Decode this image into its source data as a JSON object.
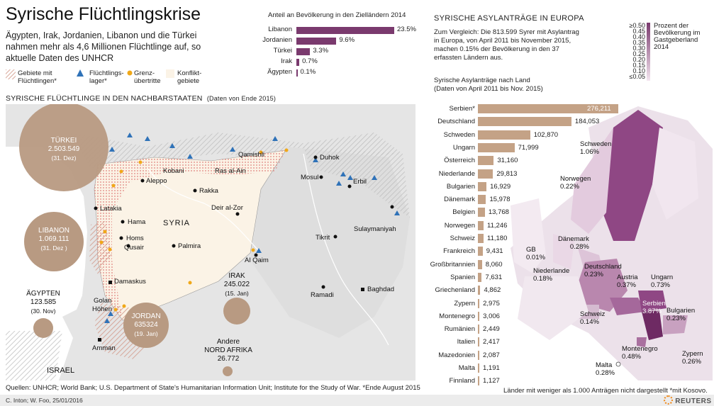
{
  "title": "Syrische Flüchtlingskrise",
  "intro": "Ägypten, Irak, Jordanien, Libanon und die Türkei nahmen mehr als 4,6 Millionen Flüchtlinge auf, so aktuelle Daten des UNHCR",
  "legend": {
    "gebiete": "Gebiete mit Flüchtlingen*",
    "lager": "Flüchtlings-lager*",
    "grenz": "Grenz-übertritte",
    "konflikt": "Konflikt-gebiete"
  },
  "neighbors_heading": "SYRISCHE FLÜCHTLINGE IN DEN NACHBARSTAATEN",
  "neighbors_heading_note": "(Daten von Ende 2015)",
  "share": {
    "title": "Anteil an Bevölkerung in den Zielländern 2014",
    "rows": [
      {
        "label": "Libanon",
        "value": 23.5,
        "text": "23.5%"
      },
      {
        "label": "Jordanien",
        "value": 9.6,
        "text": "9.6%"
      },
      {
        "label": "Türkei",
        "value": 3.3,
        "text": "3.3%"
      },
      {
        "label": "Irak",
        "value": 0.7,
        "text": "0.7%"
      },
      {
        "label": "Ägypten",
        "value": 0.1,
        "text": "0.1%"
      }
    ]
  },
  "bubbles": {
    "turkei": {
      "name": "TÜRKEI",
      "value": "2.503.549",
      "date": "(31. Dez)"
    },
    "libanon": {
      "name": "LIBANON",
      "value": "1.069.111",
      "date": "(31. Dez )"
    },
    "aegypten": {
      "name": "ÄGYPTEN",
      "value": "123.585",
      "date": "(30. Nov)"
    },
    "jordan": {
      "name": "JORDAN",
      "value": "635324",
      "date": "(19. Jan)"
    },
    "irak": {
      "name": "IRAK",
      "value": "245.022",
      "date": "(15. Jan)"
    },
    "nordafrika": {
      "name": "Andere",
      "name2": "NORD AFRIKA",
      "value": "26.772"
    }
  },
  "cities": {
    "aleppo": "Aleppo",
    "kobani": "Kobani",
    "qamishli": "Qamishli",
    "rasalain": "Ras al-Ain",
    "rakka": "Rakka",
    "latakia": "Latakia",
    "hama": "Hama",
    "syria": "SYRIA",
    "deirazzor": "Deir al-Zor",
    "homs": "Homs",
    "qusair": "Qusair",
    "palmira": "Palmira",
    "duhok": "Duhok",
    "mosul": "Mosul",
    "erbil": "Erbil",
    "sulaymaniyah": "Sulaymaniyah",
    "tikrit": "Tikrit",
    "alqaim": "Al Qaim",
    "damaskus": "Damaskus",
    "golan": "Golan",
    "hohen": "Höhen",
    "amman": "Amman",
    "ramadi": "Ramadi",
    "baghdad": "Baghdad",
    "israel": "ISRAEL"
  },
  "eu": {
    "heading": "SYRISCHE ASYLANTRÄGE IN EUROPA",
    "text": "Zum Vergleich: Die 813.599 Syrer mit Asylantrag in Europa, von April 2011 bis November 2015, machen 0.15% der Bevölkerung in den 37 erfassten Ländern aus.",
    "sub1": "Syrische Asylanträge nach Land",
    "sub2": "(Daten von April 2011 bis Nov. 2015)",
    "legend_title": "Prozent der Bevölkerung im Gastgeberland 2014",
    "legend_ticks": [
      "≥0.50",
      "0.45",
      "0.40",
      "0.35",
      "0.30",
      "0.25",
      "0.20",
      "0.15",
      "0.10",
      "≤0.05"
    ],
    "map_labels": {
      "schweden": {
        "name": "Schweden",
        "pct": "1.06%"
      },
      "norwegen": {
        "name": "Norwegen",
        "pct": "0.22%"
      },
      "daenemark": {
        "name": "Dänemark",
        "pct": "0.28%"
      },
      "gb": {
        "name": "GB",
        "pct": "0.01%"
      },
      "niederlande": {
        "name": "Niederlande",
        "pct": "0.18%"
      },
      "deutschland": {
        "name": "Deutschland",
        "pct": "0.23%"
      },
      "austria": {
        "name": "Austria",
        "pct": "0.37%"
      },
      "ungarn": {
        "name": "Ungarn",
        "pct": "0.73%"
      },
      "serbien": {
        "name": "Serbien",
        "pct": "3.87%"
      },
      "bulgarien": {
        "name": "Bulgarien",
        "pct": "0.23%"
      },
      "schweiz": {
        "name": "Schweiz",
        "pct": "0.14%"
      },
      "montenegro": {
        "name": "Montenegro",
        "pct": "0.48%"
      },
      "malta": {
        "name": "Malta",
        "pct": "0.28%"
      },
      "zypern": {
        "name": "Zypern",
        "pct": "0.26%"
      }
    }
  },
  "chart_data": {
    "type": "bar",
    "orientation": "horizontal",
    "categories": [
      "Serbien*",
      "Deutschland",
      "Schweden",
      "Ungarn",
      "Österreich",
      "Niederlande",
      "Bulgarien",
      "Dänemark",
      "Belgien",
      "Norwegen",
      "Schweiz",
      "Frankreich",
      "Großbritannien",
      "Spanien",
      "Griechenland",
      "Zypern",
      "Montenegro",
      "Rumänien",
      "Italien",
      "Mazedonien",
      "Malta",
      "Finnland"
    ],
    "values": [
      276211,
      184053,
      102870,
      71999,
      31160,
      29813,
      16929,
      15978,
      13768,
      11246,
      11180,
      9431,
      8060,
      7631,
      4862,
      2975,
      3006,
      2449,
      2417,
      2087,
      1191,
      1127
    ],
    "labels": [
      "276,211",
      "184,053",
      "102,870",
      "71,999",
      "31,160",
      "29,813",
      "16,929",
      "15,978",
      "13,768",
      "11,246",
      "11,180",
      "9,431",
      "8,060",
      "7,631",
      "4,862",
      "2,975",
      "3,006",
      "2,449",
      "2,417",
      "2,087",
      "1,191",
      "1,127"
    ]
  },
  "footer": {
    "sources": "Quellen: UNHCR; World Bank; U.S. Department of State's Humanitarian Information Unit; Institute for the Study of War. *Ende August 2015",
    "note": "Länder mit weniger als 1.000 Anträgen nicht dargestellt *mit Kosovo.",
    "credit": "C. Inton; W. Foo, 25/01/2016",
    "brand": "REUTERS"
  },
  "colors": {
    "bubble": "#b89a82",
    "purple": "#7a3a6e",
    "bar": "#c4a286",
    "map_bg": "#e5e5e5",
    "syria": "#fbf3e6"
  }
}
